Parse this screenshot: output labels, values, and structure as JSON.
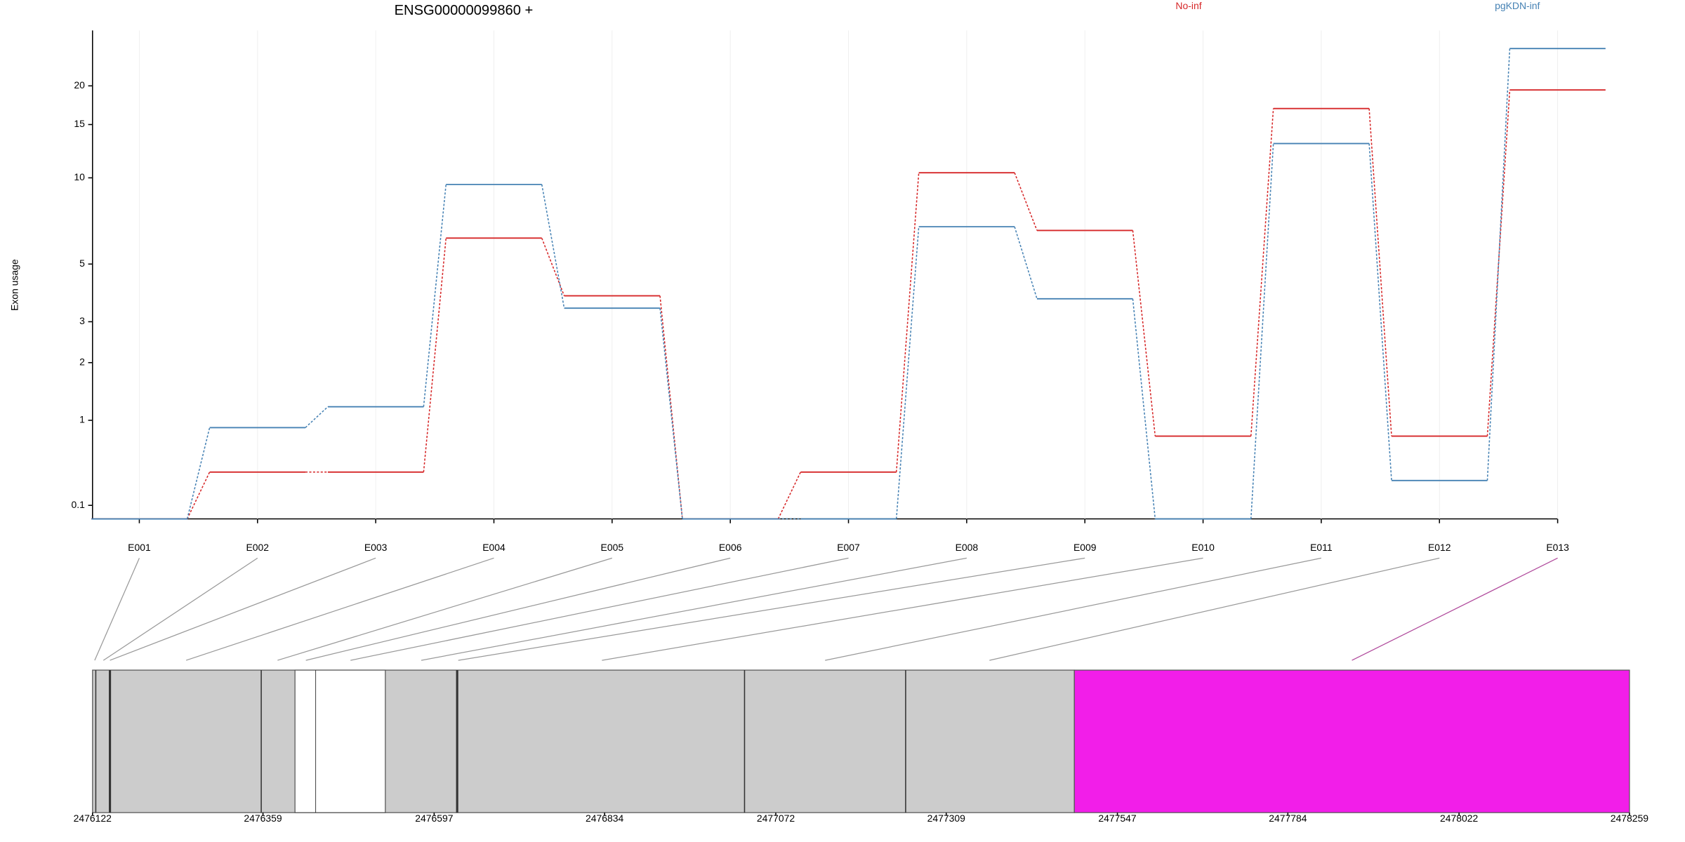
{
  "chart_data": {
    "type": "line",
    "title": "ENSG00000099860 +",
    "ylabel": "Exon usage",
    "categories": [
      "E001",
      "E002",
      "E003",
      "E004",
      "E005",
      "E006",
      "E007",
      "E008",
      "E009",
      "E010",
      "E011",
      "E012",
      "E013"
    ],
    "series": [
      {
        "name": "No-inf",
        "color": "#d62728",
        "values": [
          0,
          0.39,
          0.39,
          6.2,
          3.8,
          0,
          0.39,
          10.4,
          6.6,
          0.79,
          16.9,
          0.79,
          19.4
        ]
      },
      {
        "name": "pgKDN-inf",
        "color": "#4682b4",
        "values": [
          0,
          0.9,
          1.2,
          9.5,
          3.4,
          0,
          0,
          6.8,
          3.7,
          0,
          13,
          0.31,
          26.3
        ]
      }
    ],
    "ylim": [
      0,
      30
    ],
    "yticks": [
      0.1,
      1,
      2,
      3,
      5,
      10,
      15,
      20
    ],
    "yscale": "log10(x+1)",
    "grid": true,
    "coordinate_lim": [
      2476122,
      2478259
    ],
    "coordinate_ticks": [
      2476122,
      2476359,
      2476597,
      2476834,
      2477072,
      2477309,
      2477547,
      2477784,
      2478022,
      2478259
    ]
  }
}
